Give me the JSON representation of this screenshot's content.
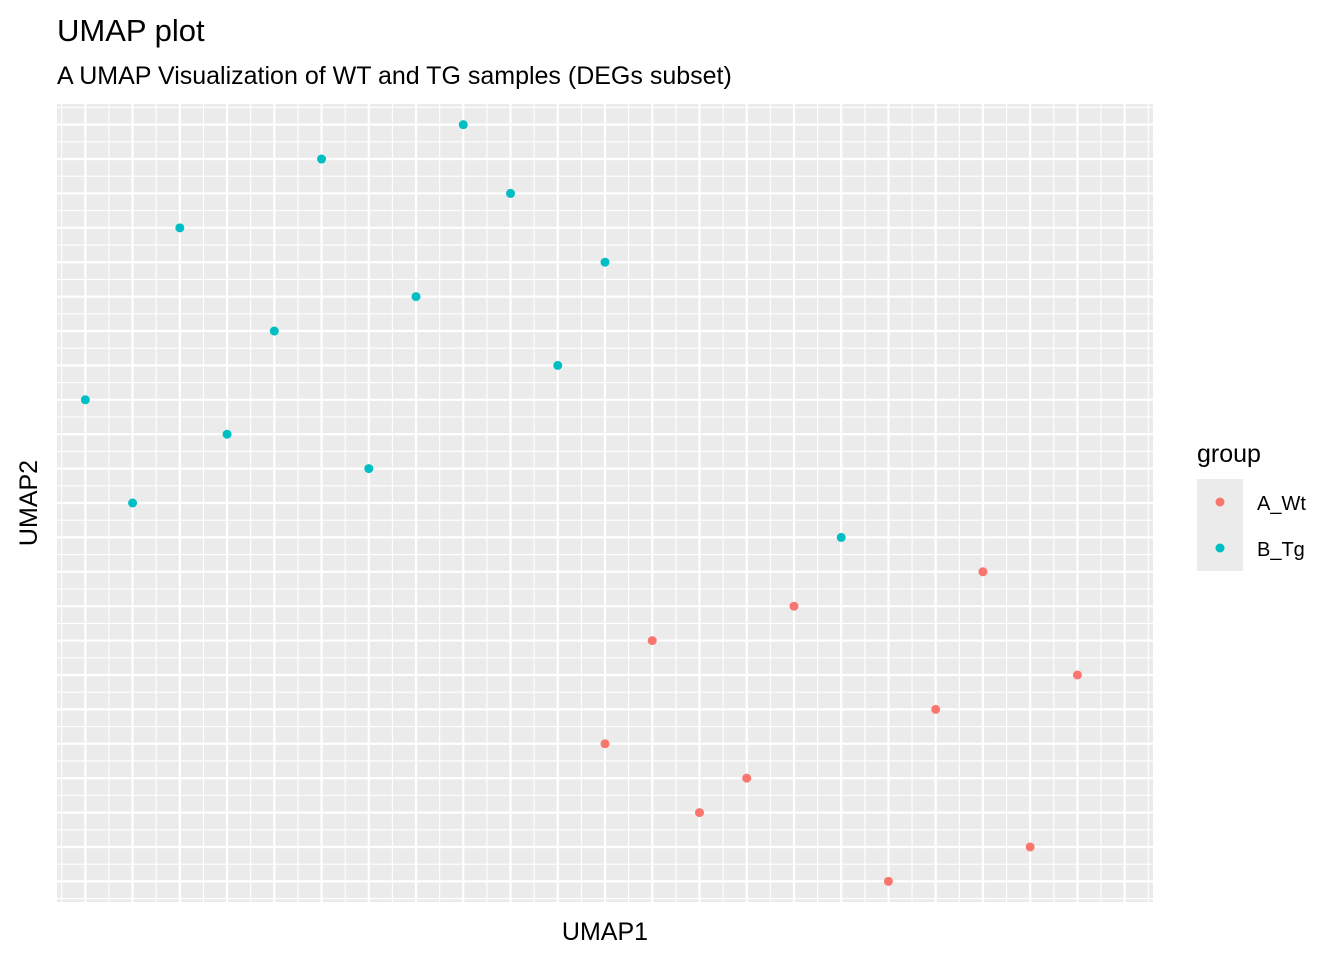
{
  "chart_data": {
    "type": "scatter",
    "title": "UMAP plot",
    "subtitle": "A UMAP Visualization of WT and TG samples (DEGs subset)",
    "xlabel": "UMAP1",
    "ylabel": "UMAP2",
    "xlim": [
      0.4,
      23.6
    ],
    "ylim": [
      -0.6,
      22.6
    ],
    "grid": true,
    "legend": {
      "title": "group",
      "placement": "right"
    },
    "series": [
      {
        "name": "A_Wt",
        "color": "#F8766D",
        "points": [
          {
            "x": 13,
            "y": 7
          },
          {
            "x": 12,
            "y": 4
          },
          {
            "x": 14,
            "y": 2
          },
          {
            "x": 15,
            "y": 3
          },
          {
            "x": 16,
            "y": 8
          },
          {
            "x": 18,
            "y": 0
          },
          {
            "x": 19,
            "y": 5
          },
          {
            "x": 20,
            "y": 9
          },
          {
            "x": 21,
            "y": 1
          },
          {
            "x": 22,
            "y": 6
          }
        ]
      },
      {
        "name": "B_Tg",
        "color": "#00BFC4",
        "points": [
          {
            "x": 1,
            "y": 14
          },
          {
            "x": 2,
            "y": 11
          },
          {
            "x": 3,
            "y": 19
          },
          {
            "x": 4,
            "y": 13
          },
          {
            "x": 5,
            "y": 16
          },
          {
            "x": 6,
            "y": 21
          },
          {
            "x": 7,
            "y": 12
          },
          {
            "x": 8,
            "y": 17
          },
          {
            "x": 9,
            "y": 22
          },
          {
            "x": 10,
            "y": 20
          },
          {
            "x": 11,
            "y": 15
          },
          {
            "x": 12,
            "y": 18
          },
          {
            "x": 17,
            "y": 10
          }
        ]
      }
    ]
  }
}
